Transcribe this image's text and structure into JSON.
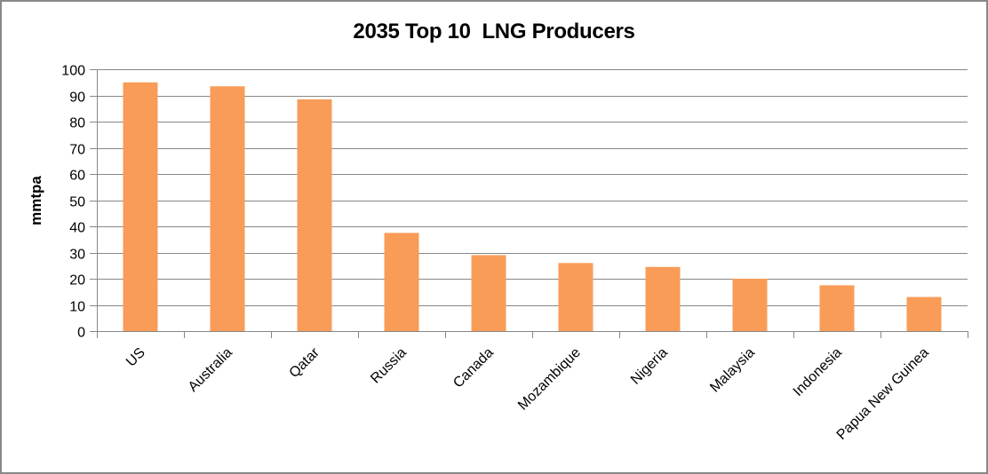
{
  "window": {
    "background": "#ffffff",
    "border_color": "#888888"
  },
  "chart_data": {
    "type": "bar",
    "title": "2035 Top 10  LNG Producers",
    "xlabel": "",
    "ylabel": "mmtpa",
    "categories": [
      "US",
      "Australia",
      "Qatar",
      "Russia",
      "Canada",
      "Mozambique",
      "Nigeria",
      "Malaysia",
      "Indonesia",
      "Papua New Guinea"
    ],
    "values": [
      95,
      93.5,
      88.5,
      37.5,
      29,
      26,
      24.5,
      20,
      17.5,
      13
    ],
    "ylim": [
      0,
      100
    ],
    "ytick_step": 10,
    "ytick_labels": [
      "0",
      "10",
      "20",
      "30",
      "40",
      "50",
      "60",
      "70",
      "80",
      "90",
      "100"
    ],
    "grid": true,
    "legend_position": "none",
    "colors": {
      "bar_fill": "#F89C58",
      "gridline": "#878787",
      "axis": "#878787",
      "text": "#000000"
    }
  }
}
